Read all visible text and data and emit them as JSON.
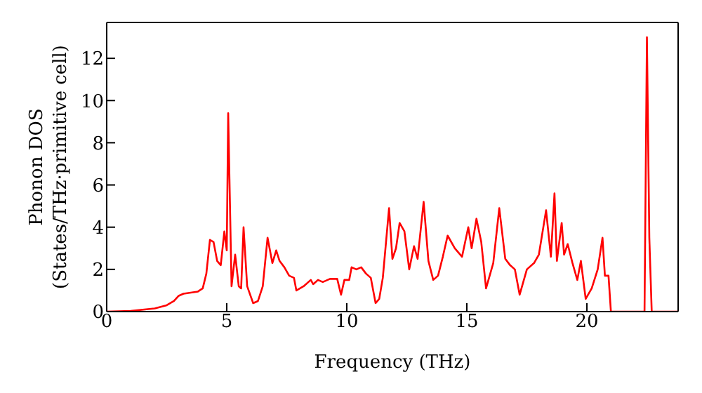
{
  "chart_data": {
    "type": "line",
    "xlabel": "Frequency (THz)",
    "ylabel": "Phonon DOS\n(States/THz·primitive cell)",
    "x": [
      0,
      1,
      2,
      2.5,
      2.8,
      3,
      3.2,
      3.8,
      4,
      4.15,
      4.3,
      4.45,
      4.6,
      4.75,
      4.9,
      5.0,
      5.06,
      5.2,
      5.35,
      5.5,
      5.6,
      5.7,
      5.85,
      6.1,
      6.3,
      6.5,
      6.7,
      6.9,
      7.06,
      7.2,
      7.4,
      7.6,
      7.8,
      7.9,
      8.2,
      8.5,
      8.6,
      8.8,
      9.0,
      9.3,
      9.6,
      9.76,
      9.9,
      10.1,
      10.2,
      10.4,
      10.6,
      10.8,
      11.0,
      11.2,
      11.35,
      11.5,
      11.76,
      11.9,
      12.05,
      12.2,
      12.4,
      12.6,
      12.8,
      12.95,
      13.2,
      13.4,
      13.6,
      13.8,
      14.0,
      14.2,
      14.5,
      14.8,
      15.06,
      15.2,
      15.4,
      15.6,
      15.8,
      16.1,
      16.35,
      16.6,
      16.8,
      17.0,
      17.2,
      17.5,
      17.8,
      18.0,
      18.3,
      18.5,
      18.65,
      18.75,
      18.95,
      19.05,
      19.2,
      19.4,
      19.6,
      19.75,
      19.95,
      20.2,
      20.45,
      20.65,
      20.75,
      20.9,
      21.0,
      22.4,
      22.5,
      22.6,
      22.7,
      23.8
    ],
    "series": [
      {
        "color": "#ff0000",
        "values": [
          0,
          0.03,
          0.15,
          0.3,
          0.5,
          0.75,
          0.85,
          0.95,
          1.1,
          1.8,
          3.4,
          3.3,
          2.4,
          2.2,
          3.8,
          2.9,
          9.4,
          1.2,
          2.7,
          1.2,
          1.1,
          4.0,
          1.2,
          0.4,
          0.5,
          1.2,
          3.5,
          2.3,
          2.9,
          2.4,
          2.1,
          1.7,
          1.6,
          1.0,
          1.2,
          1.5,
          1.3,
          1.5,
          1.4,
          1.55,
          1.55,
          0.8,
          1.5,
          1.5,
          2.1,
          2.0,
          2.1,
          1.8,
          1.6,
          0.4,
          0.6,
          1.6,
          4.9,
          2.5,
          3.0,
          4.2,
          3.8,
          2.0,
          3.1,
          2.5,
          5.2,
          2.4,
          1.5,
          1.7,
          2.6,
          3.6,
          3.0,
          2.6,
          4.0,
          3.0,
          4.4,
          3.3,
          1.1,
          2.3,
          4.9,
          2.5,
          2.2,
          2.0,
          0.8,
          2.0,
          2.3,
          2.7,
          4.8,
          2.6,
          5.6,
          2.4,
          4.2,
          2.7,
          3.2,
          2.3,
          1.5,
          2.4,
          0.6,
          1.1,
          2.0,
          3.5,
          1.7,
          1.7,
          0,
          0,
          13.0,
          3.5,
          0,
          0
        ]
      }
    ],
    "xlim": [
      0,
      23.8
    ],
    "ylim": [
      0,
      13.7
    ],
    "xticks": [
      0,
      5,
      10,
      15,
      20
    ],
    "yticks": [
      0,
      2,
      4,
      6,
      8,
      10,
      12
    ]
  }
}
